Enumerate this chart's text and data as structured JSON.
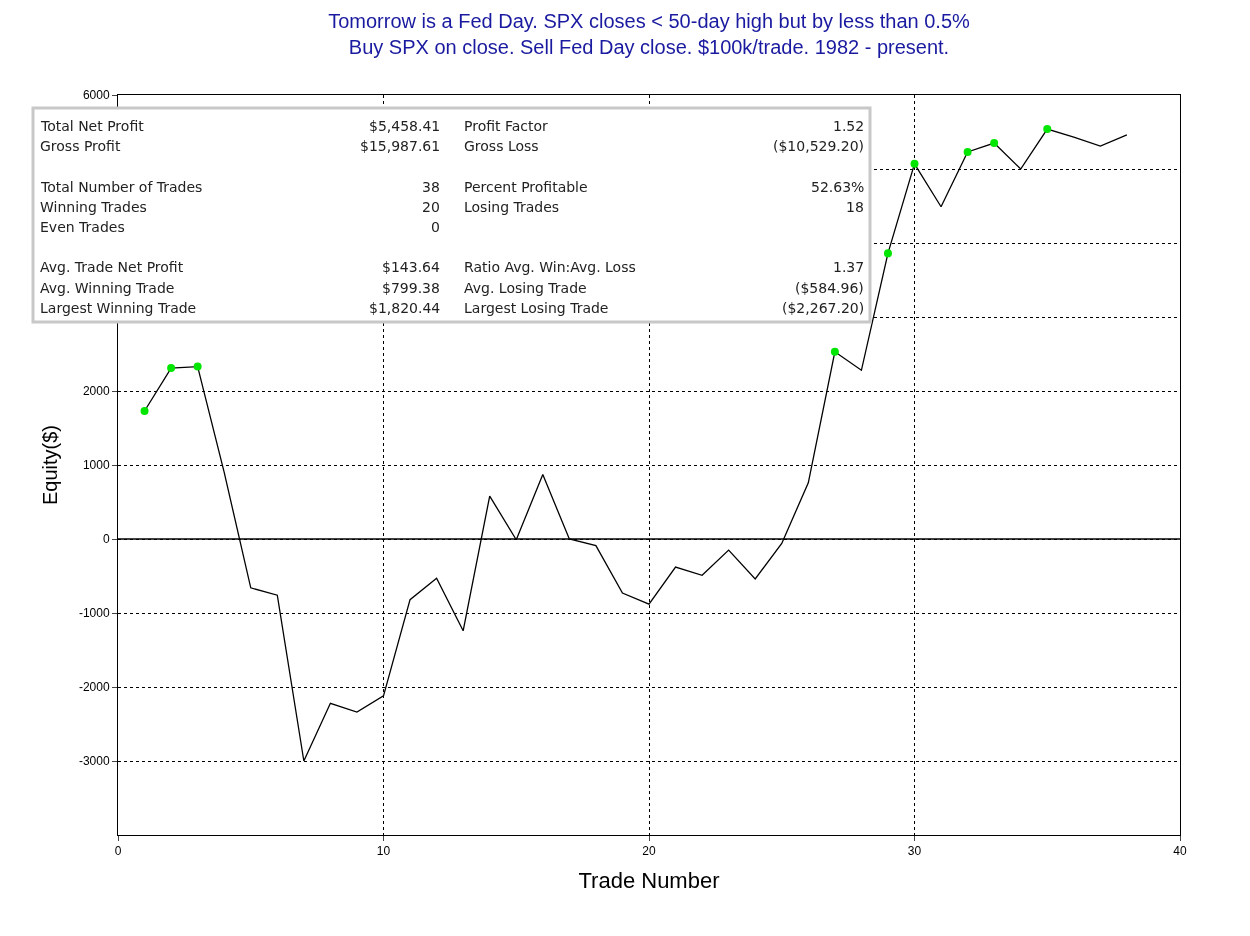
{
  "chart_data": [
    {
      "type": "line",
      "title": "Tomorrow is a Fed Day. SPX closes < 50-day high but by less than 0.5%\nBuy SPX on close. Sell Fed Day close. $100k/trade. 1982 - present.",
      "xlabel": "Trade Number",
      "ylabel": "Equity($)",
      "xlim": [
        0,
        40
      ],
      "xticks": [
        0,
        10,
        20,
        30,
        40
      ],
      "ylim": [
        -4000,
        6000
      ],
      "yticks": [
        -3000,
        -2000,
        -1000,
        0,
        1000,
        2000,
        {
          "value": 3000,
          "label": null
        },
        {
          "value": 4000,
          "label": null
        },
        {
          "value": 5000,
          "label": null
        },
        6000
      ],
      "grid": true,
      "ref_lines": [
        {
          "axis": "y",
          "value": 0,
          "color": "#000000",
          "line_style": "solid"
        }
      ],
      "series": [
        {
          "type": "line",
          "color": "#000000",
          "marker": "none",
          "x": [
            1,
            2,
            3,
            4,
            5,
            6,
            7,
            8,
            9,
            10,
            11,
            12,
            13,
            14,
            15,
            16,
            17,
            18,
            19,
            20,
            21,
            22,
            23,
            24,
            25,
            26,
            27,
            28,
            29,
            30,
            31,
            32,
            33,
            34,
            35,
            36,
            37,
            38
          ],
          "values": [
            1730,
            2310,
            2330,
            900,
            -660,
            -760,
            -3000,
            -2220,
            -2340,
            -2120,
            -820,
            -530,
            -1240,
            580,
            -10,
            870,
            0,
            -90,
            -730,
            -880,
            -380,
            -490,
            -150,
            -540,
            -60,
            760,
            2530,
            2280,
            3860,
            5070,
            4490,
            5230,
            5350,
            5000,
            5540,
            5430,
            5310,
            5460
          ]
        },
        {
          "type": "scatter",
          "color": "#00e600",
          "marker": "circle",
          "x": [
            1,
            2,
            3,
            27,
            29,
            30,
            32,
            33,
            35
          ],
          "values": [
            1730,
            2310,
            2330,
            2530,
            3860,
            5070,
            5230,
            5350,
            5540
          ]
        }
      ]
    },
    {
      "type": "other",
      "annotations": [
        "Total Net Profit",
        "$5,458.41",
        "Profit Factor",
        "1.52",
        "Gross Profit",
        "$15,987.61",
        "Gross Loss",
        "($10,529.20)",
        "Total Number of Trades",
        "38",
        "Percent Profitable",
        "52.63%",
        "Winning Trades",
        "20",
        "Losing Trades",
        "18",
        "Even Trades",
        "0",
        "Avg. Trade Net Profit",
        "$143.64",
        "Ratio Avg. Win:Avg. Loss",
        "1.37",
        "Avg. Winning Trade",
        "$799.38",
        "Avg. Losing Trade",
        "($584.96)",
        "Largest Winning Trade",
        "$1,820.44",
        "Largest Losing Trade",
        "($2,267.20)"
      ]
    }
  ]
}
